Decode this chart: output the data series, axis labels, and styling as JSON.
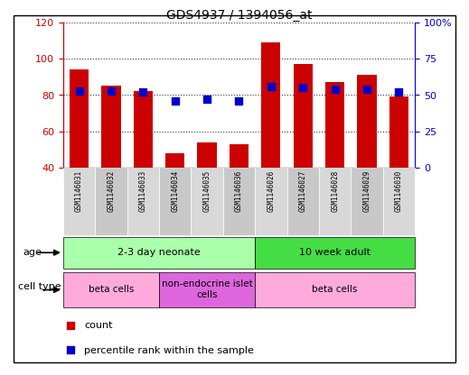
{
  "title": "GDS4937 / 1394056_at",
  "samples": [
    "GSM1146031",
    "GSM1146032",
    "GSM1146033",
    "GSM1146034",
    "GSM1146035",
    "GSM1146036",
    "GSM1146026",
    "GSM1146027",
    "GSM1146028",
    "GSM1146029",
    "GSM1146030"
  ],
  "counts": [
    94,
    85,
    82,
    48,
    54,
    53,
    109,
    97,
    87,
    91,
    79
  ],
  "percentiles": [
    53,
    53,
    52,
    46,
    47,
    46,
    56,
    55,
    54,
    54,
    52
  ],
  "ylim_left": [
    40,
    120
  ],
  "ylim_right": [
    0,
    100
  ],
  "yticks_left": [
    40,
    60,
    80,
    100,
    120
  ],
  "yticks_right": [
    0,
    25,
    50,
    75,
    100
  ],
  "ytick_labels_right": [
    "0",
    "25",
    "50",
    "75",
    "100%"
  ],
  "bar_color": "#cc0000",
  "dot_color": "#0000cc",
  "age_groups": [
    {
      "label": "2-3 day neonate",
      "start": 0,
      "end": 6,
      "color": "#aaffaa"
    },
    {
      "label": "10 week adult",
      "start": 6,
      "end": 11,
      "color": "#44dd44"
    }
  ],
  "cell_type_groups": [
    {
      "label": "beta cells",
      "start": 0,
      "end": 3,
      "color": "#ffaadd"
    },
    {
      "label": "non-endocrine islet\ncells",
      "start": 3,
      "end": 6,
      "color": "#dd66dd"
    },
    {
      "label": "beta cells",
      "start": 6,
      "end": 11,
      "color": "#ffaadd"
    }
  ],
  "bar_width": 0.6,
  "dot_size": 30
}
